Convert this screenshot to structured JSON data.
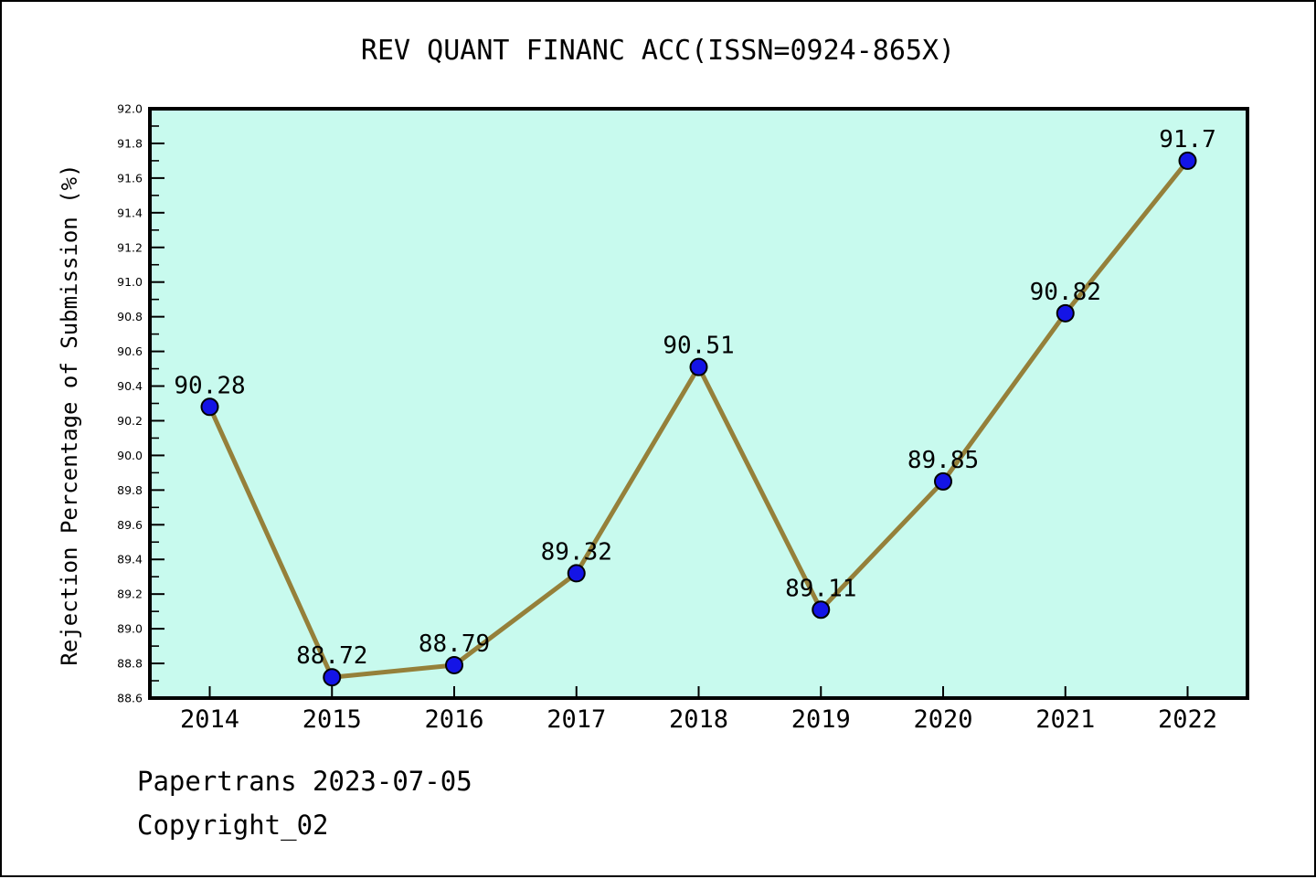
{
  "chart_data": {
    "type": "line",
    "title": "REV QUANT FINANC ACC(ISSN=0924-865X)",
    "ylabel": "Rejection Percentage of Submission (%)",
    "xlabel": "",
    "categories": [
      "2014",
      "2015",
      "2016",
      "2017",
      "2018",
      "2019",
      "2020",
      "2021",
      "2022"
    ],
    "values": [
      90.28,
      88.72,
      88.79,
      89.32,
      90.51,
      89.11,
      89.85,
      90.82,
      91.7
    ],
    "point_labels": [
      "90.28",
      "88.72",
      "88.79",
      "89.32",
      "90.51",
      "89.11",
      "89.85",
      "90.82",
      "91.7"
    ],
    "ylim": [
      88.6,
      92.0
    ],
    "y_major_step": 0.2,
    "y_minor_step": 0.1,
    "grid": false,
    "legend_position": "none",
    "colors": {
      "plot_bg": "#C8FAEE",
      "line": "#95803A",
      "marker_fill": "#1414E6",
      "marker_edge": "#000000",
      "axis": "#000000",
      "text": "#000000",
      "figure_bg": "#ffffff"
    }
  },
  "footer": {
    "line1": "Papertrans 2023-07-05",
    "line2": "Copyright_02"
  }
}
